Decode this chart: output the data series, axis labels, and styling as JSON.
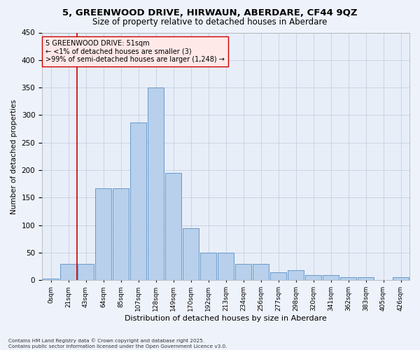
{
  "title": "5, GREENWOOD DRIVE, HIRWAUN, ABERDARE, CF44 9QZ",
  "subtitle": "Size of property relative to detached houses in Aberdare",
  "xlabel": "Distribution of detached houses by size in Aberdare",
  "ylabel": "Number of detached properties",
  "annotation_line1": "5 GREENWOOD DRIVE: 51sqm",
  "annotation_line2": "← <1% of detached houses are smaller (3)",
  "annotation_line3": ">99% of semi-detached houses are larger (1,248) →",
  "bar_labels": [
    "0sqm",
    "21sqm",
    "43sqm",
    "64sqm",
    "85sqm",
    "107sqm",
    "128sqm",
    "149sqm",
    "170sqm",
    "192sqm",
    "213sqm",
    "234sqm",
    "256sqm",
    "277sqm",
    "298sqm",
    "320sqm",
    "341sqm",
    "362sqm",
    "383sqm",
    "405sqm",
    "426sqm"
  ],
  "bar_values": [
    3,
    30,
    30,
    167,
    167,
    287,
    350,
    195,
    95,
    50,
    50,
    30,
    30,
    15,
    18,
    10,
    10,
    5,
    5,
    1,
    5
  ],
  "bar_color": "#b8d0eb",
  "bar_edge_color": "#6699cc",
  "vline_x": 1.5,
  "vline_color": "#cc0000",
  "background_color": "#eef2fa",
  "plot_bg_color": "#e8eef8",
  "grid_color": "#c5cfe0",
  "annotation_box_facecolor": "#ffe8e8",
  "annotation_border_color": "#cc0000",
  "ylim": [
    0,
    450
  ],
  "yticks": [
    0,
    50,
    100,
    150,
    200,
    250,
    300,
    350,
    400,
    450
  ],
  "footer": "Contains HM Land Registry data © Crown copyright and database right 2025.\nContains public sector information licensed under the Open Government Licence v3.0."
}
